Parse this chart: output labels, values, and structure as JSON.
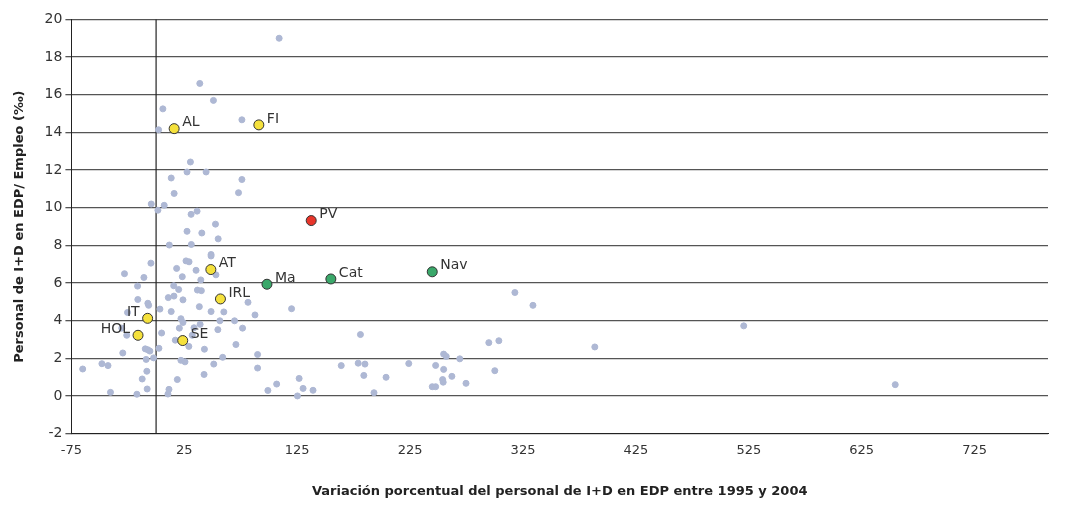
{
  "chart_data": {
    "type": "scatter",
    "xlabel": "Variación porcentual del personal de I+D en EDP entre 1995 y 2004",
    "ylabel": "Personal de I+D en EDP/ Empleo (‰)",
    "xlim": [
      -75,
      790
    ],
    "xticks": [
      -75,
      25,
      125,
      225,
      325,
      425,
      525,
      625,
      725
    ],
    "ylim": [
      -2,
      20
    ],
    "yticks": [
      -2,
      0,
      2,
      4,
      6,
      8,
      10,
      12,
      14,
      16,
      18,
      20
    ],
    "grid": "y",
    "legend": false,
    "marker": "circle",
    "ref_lines": [
      {
        "axis": "x",
        "value": 0,
        "color": "#222222"
      }
    ],
    "series": [
      {
        "color": "#aeb8d4",
        "x": [
          109,
          38.7,
          50.8,
          6,
          76,
          2.2,
          30.4,
          27.4,
          44.3,
          13.4,
          76,
          16,
          73,
          -4.3,
          7.2,
          1.6,
          31,
          36.3,
          52.6,
          27.4,
          40.5,
          55,
          11.7,
          31.2,
          48.7,
          48.7,
          -4.6,
          26.5,
          29.2,
          18.2,
          35.4,
          -28,
          53,
          23.2,
          -10.8,
          39.6,
          -16.4,
          15.6,
          20,
          36.6,
          40.1,
          10.8,
          15.8,
          -16.2,
          23.8,
          81.4,
          -7.3,
          -6.6,
          38.3,
          120,
          3.4,
          -25.3,
          13.4,
          48.7,
          60,
          87.6,
          22,
          23.8,
          56.5,
          69.5,
          39,
          -30.4,
          20.6,
          33.6,
          76.6,
          54.7,
          -26,
          4.9,
          32,
          17,
          70.7,
          29,
          2.5,
          -9.6,
          -7.3,
          -5.5,
          42.8,
          -29.5,
          89.9,
          59,
          -2.2,
          -8.8,
          22,
          25.6,
          -65,
          -48,
          -42.6,
          51.1,
          89.9,
          -8.2,
          42.5,
          -12.3,
          18.8,
          106.8,
          126.7,
          99,
          -40.4,
          -7.9,
          11.4,
          10.5,
          -17,
          125.2,
          317.8,
          333.8,
          181,
          294.7,
          303.6,
          388.6,
          254.7,
          257,
          269,
          164,
          179,
          185,
          223.8,
          247.6,
          254.7,
          300,
          184,
          203.7,
          262,
          253.8,
          254.3,
          274.5,
          244.6,
          247.6,
          130.2,
          139,
          193,
          520.5,
          654.7
        ],
        "values": [
          19,
          16.6,
          15.7,
          15.25,
          14.67,
          14.14,
          12.43,
          11.9,
          11.9,
          11.58,
          11.5,
          10.76,
          10.8,
          10.2,
          10.13,
          9.87,
          9.65,
          9.82,
          9.13,
          8.75,
          8.66,
          8.35,
          8.02,
          8.05,
          7.52,
          7.44,
          7.06,
          7.18,
          7.13,
          6.78,
          6.68,
          6.5,
          6.44,
          6.34,
          6.3,
          6.17,
          5.84,
          5.86,
          5.66,
          5.63,
          5.6,
          5.23,
          5.31,
          5.13,
          5.11,
          4.98,
          4.93,
          4.82,
          4.75,
          4.64,
          4.62,
          4.44,
          4.49,
          4.49,
          4.47,
          4.31,
          4.11,
          3.91,
          4,
          4,
          3.81,
          3.61,
          3.61,
          3.63,
          3.61,
          3.53,
          3.23,
          3.35,
          3.23,
          2.97,
          2.74,
          2.64,
          2.54,
          2.51,
          2.46,
          2.39,
          2.49,
          2.29,
          2.21,
          2.06,
          2.03,
          1.95,
          1.9,
          1.82,
          1.44,
          1.72,
          1.62,
          1.7,
          1.49,
          1.32,
          1.15,
          0.91,
          0.88,
          0.64,
          0.94,
          0.3,
          0.2,
          0.38,
          0.36,
          0.11,
          0.1,
          0.01,
          5.5,
          4.82,
          3.27,
          2.84,
          2.94,
          2.61,
          2.23,
          2.11,
          1.98,
          1.62,
          1.75,
          1.7,
          1.73,
          1.63,
          1.42,
          1.35,
          1.1,
          1,
          1.05,
          0.88,
          0.74,
          0.68,
          0.5,
          0.5,
          0.41,
          0.31,
          0.18,
          3.73,
          0.61
        ]
      },
      {
        "color": "#f5e13c",
        "x": [
          16,
          91,
          48.5,
          57,
          -7.5,
          -16,
          23.6
        ],
        "values": [
          14.2,
          14.4,
          6.72,
          5.16,
          4.13,
          3.23,
          2.95
        ]
      },
      {
        "color": "#3aa86a",
        "x": [
          98.2,
          154.8,
          244.6
        ],
        "values": [
          5.94,
          6.22,
          6.6
        ]
      },
      {
        "color": "#e8352a",
        "x": [
          137.4
        ],
        "values": [
          9.32
        ]
      }
    ],
    "annotations": [
      {
        "text": "AL",
        "x": 16,
        "y": 14.2
      },
      {
        "text": "FI",
        "x": 91,
        "y": 14.4
      },
      {
        "text": "AT",
        "x": 48.5,
        "y": 6.72
      },
      {
        "text": "IRL",
        "x": 57,
        "y": 5.16
      },
      {
        "text": "IT",
        "x": -7.5,
        "y": 4.13
      },
      {
        "text": "HOL",
        "x": -16,
        "y": 3.23
      },
      {
        "text": "SE",
        "x": 23.6,
        "y": 2.95
      },
      {
        "text": "Ma",
        "x": 98.2,
        "y": 5.94
      },
      {
        "text": "Cat",
        "x": 154.8,
        "y": 6.22
      },
      {
        "text": "Nav",
        "x": 244.6,
        "y": 6.6
      },
      {
        "text": "PV",
        "x": 137.4,
        "y": 9.32
      }
    ]
  }
}
